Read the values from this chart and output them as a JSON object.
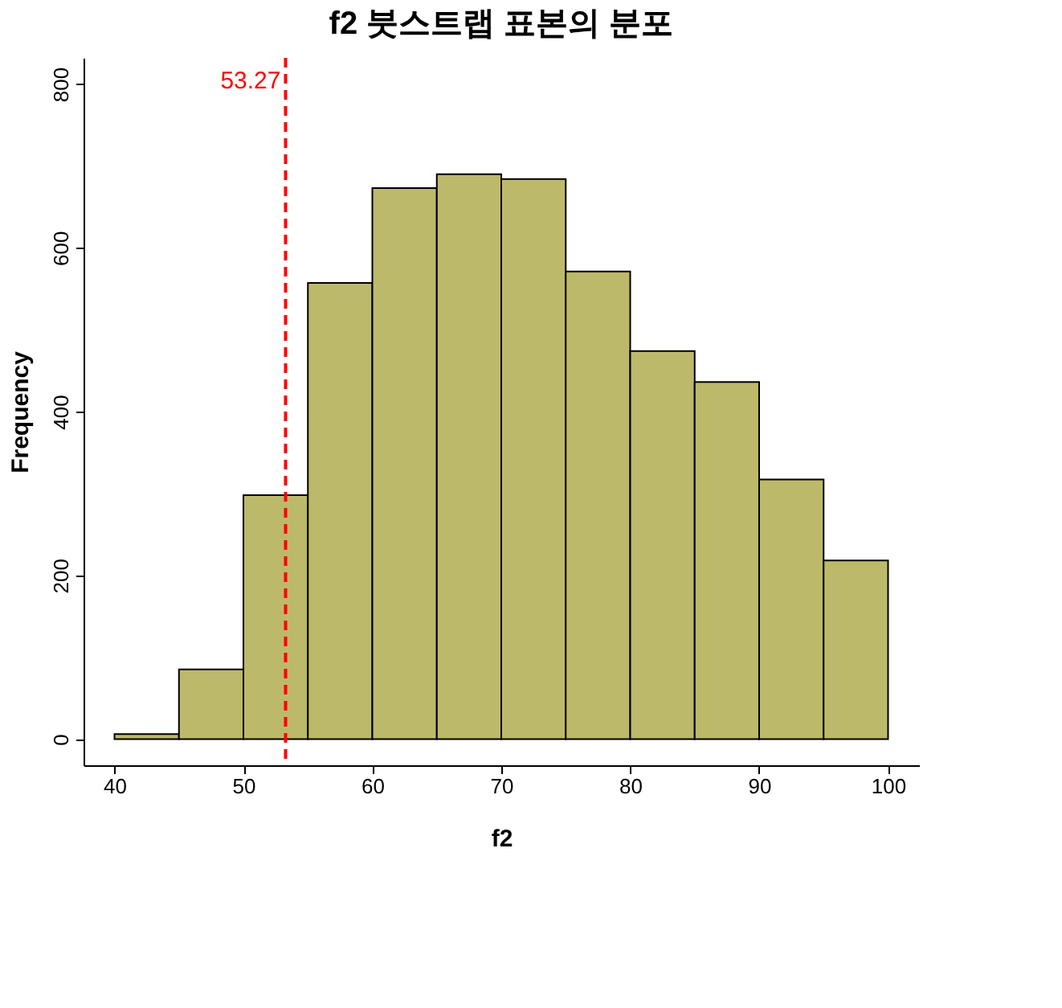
{
  "chart_data": {
    "type": "histogram",
    "title": "f2 붓스트랩 표본의 분포",
    "xlabel": "f2",
    "ylabel": "Frequency",
    "bins": [
      40,
      45,
      50,
      55,
      60,
      65,
      70,
      75,
      80,
      85,
      90,
      95,
      100
    ],
    "values": [
      6,
      85,
      298,
      557,
      673,
      690,
      684,
      571,
      474,
      436,
      317,
      218
    ],
    "color": "#bdb96b",
    "xlim": [
      37.6,
      102.4
    ],
    "ylim": [
      -32,
      832
    ],
    "xticks": [
      40,
      50,
      60,
      70,
      80,
      90,
      100
    ],
    "yticks": [
      0,
      200,
      400,
      600,
      800
    ],
    "ref_lines": [
      {
        "axis": "x",
        "value": 53.27,
        "label": "53.27",
        "color": "#ff0000",
        "line_style": "dashed"
      }
    ],
    "grid": false
  }
}
